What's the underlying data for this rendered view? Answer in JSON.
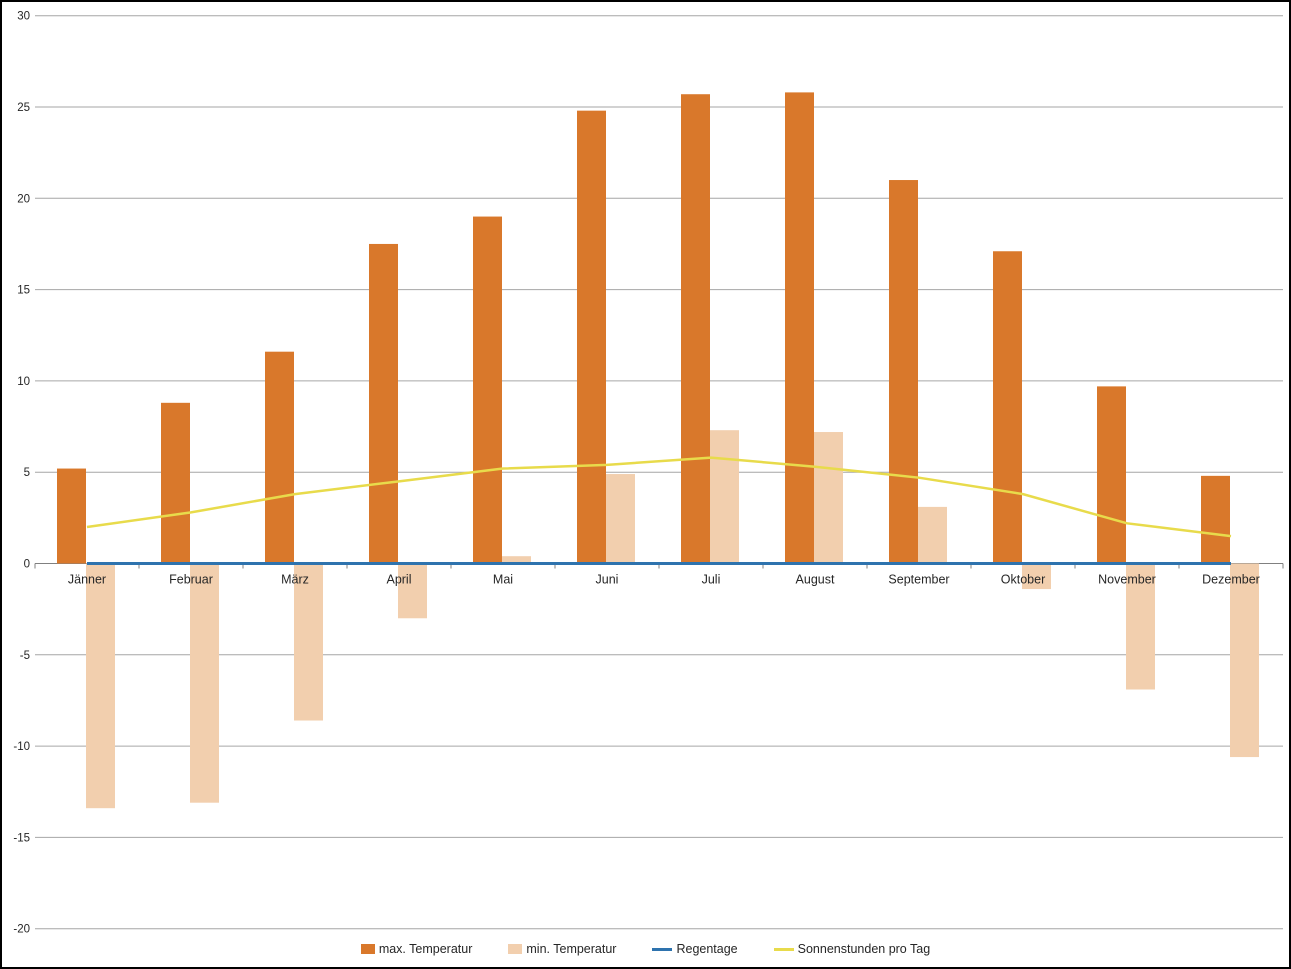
{
  "chart_data": {
    "type": "bar",
    "subtype": "combo-bar-line",
    "title": "",
    "xlabel": "",
    "ylabel": "",
    "categories": [
      "Jänner",
      "Februar",
      "März",
      "April",
      "Mai",
      "Juni",
      "Juli",
      "August",
      "September",
      "Oktober",
      "November",
      "Dezember"
    ],
    "series": [
      {
        "name": "max. Temperatur",
        "type": "bar",
        "color": "#D9782B",
        "values": [
          5.2,
          8.8,
          11.6,
          17.5,
          19.0,
          24.8,
          25.7,
          25.8,
          21.0,
          17.1,
          9.7,
          4.8
        ]
      },
      {
        "name": "min. Temperatur",
        "type": "bar",
        "color": "#F2CFAE",
        "values": [
          -13.4,
          -13.1,
          -8.6,
          -3.0,
          0.4,
          4.9,
          7.3,
          7.2,
          3.1,
          -1.4,
          -6.9,
          -10.6
        ]
      },
      {
        "name": "Regentage",
        "type": "line",
        "color": "#2E73AE",
        "values": [
          0,
          0,
          0,
          0,
          0,
          0,
          0,
          0,
          0,
          0,
          0,
          0
        ]
      },
      {
        "name": "Sonnenstunden pro Tag",
        "type": "line",
        "color": "#E8DB4B",
        "values": [
          2.0,
          2.8,
          3.8,
          4.5,
          5.2,
          5.4,
          5.8,
          5.3,
          4.7,
          3.8,
          2.2,
          1.5
        ]
      }
    ],
    "ylim": [
      -20,
      30
    ],
    "ytick_step": 5,
    "ytick_labels": [
      "30",
      "25",
      "20",
      "15",
      "10",
      "5",
      "0",
      "-5",
      "-10",
      "-15",
      "-20"
    ],
    "grid": true,
    "gridline_color": "#A6A6A6",
    "axis_color": "#808080",
    "label_color": "#262626",
    "legend_position": "bottom"
  },
  "legend": {
    "items": [
      {
        "label": "max. Temperatur",
        "swatch": "rect",
        "color": "#D9782B"
      },
      {
        "label": "min. Temperatur",
        "swatch": "rect",
        "color": "#F2CFAE"
      },
      {
        "label": "Regentage",
        "swatch": "line",
        "color": "#2E73AE"
      },
      {
        "label": "Sonnenstunden pro Tag",
        "swatch": "line",
        "color": "#E8DB4B"
      }
    ]
  }
}
